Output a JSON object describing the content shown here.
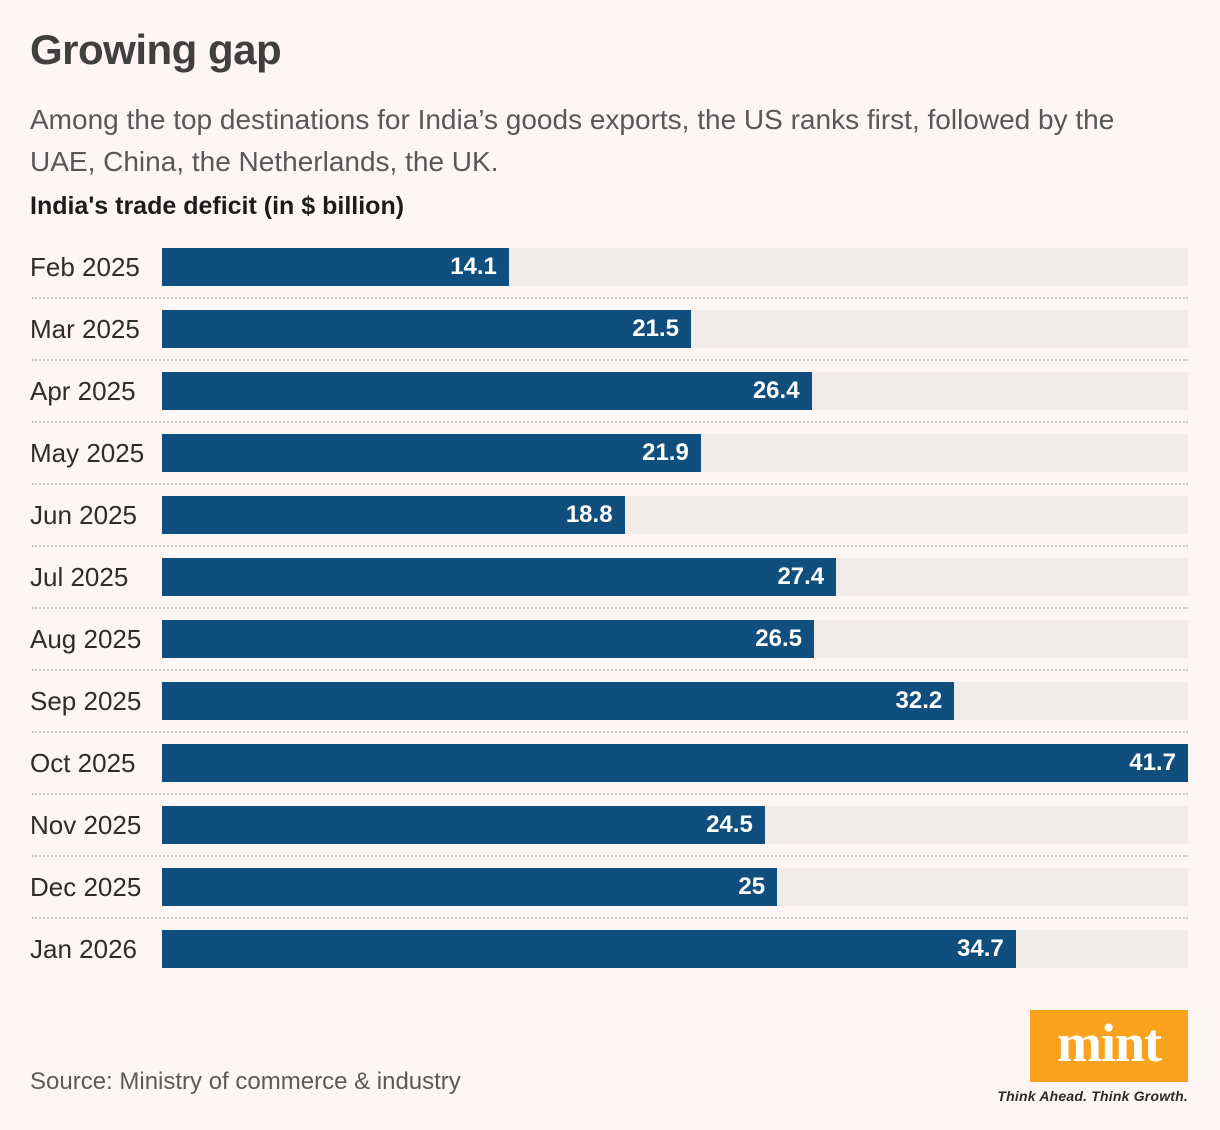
{
  "page": {
    "title": "Growing gap",
    "subtitle": "Among the top destinations for India’s goods exports, the US ranks first, followed by the UAE, China, the Netherlands, the UK.",
    "source": "Source: Ministry of commerce & industry"
  },
  "chart_data": {
    "type": "bar",
    "orientation": "horizontal",
    "title": "India's trade deficit (in $ billion)",
    "categories": [
      "Feb 2025",
      "Mar 2025",
      "Apr 2025",
      "May 2025",
      "Jun 2025",
      "Jul 2025",
      "Aug 2025",
      "Sep 2025",
      "Oct 2025",
      "Nov 2025",
      "Dec 2025",
      "Jan 2026"
    ],
    "values": [
      14.1,
      21.5,
      26.4,
      21.9,
      18.8,
      27.4,
      26.5,
      32.2,
      41.7,
      24.5,
      25,
      34.7
    ],
    "xlabel": "",
    "ylabel": "",
    "xlim": [
      0,
      41.7
    ],
    "grid": false,
    "legend": false,
    "value_labels": "inside-end",
    "bar_color": "#0f4e7d",
    "track_color": "#f0ece9"
  },
  "brand": {
    "logo_text": "mint",
    "tagline": "Think Ahead. Think Growth.",
    "logo_bg": "#f9a21d"
  }
}
